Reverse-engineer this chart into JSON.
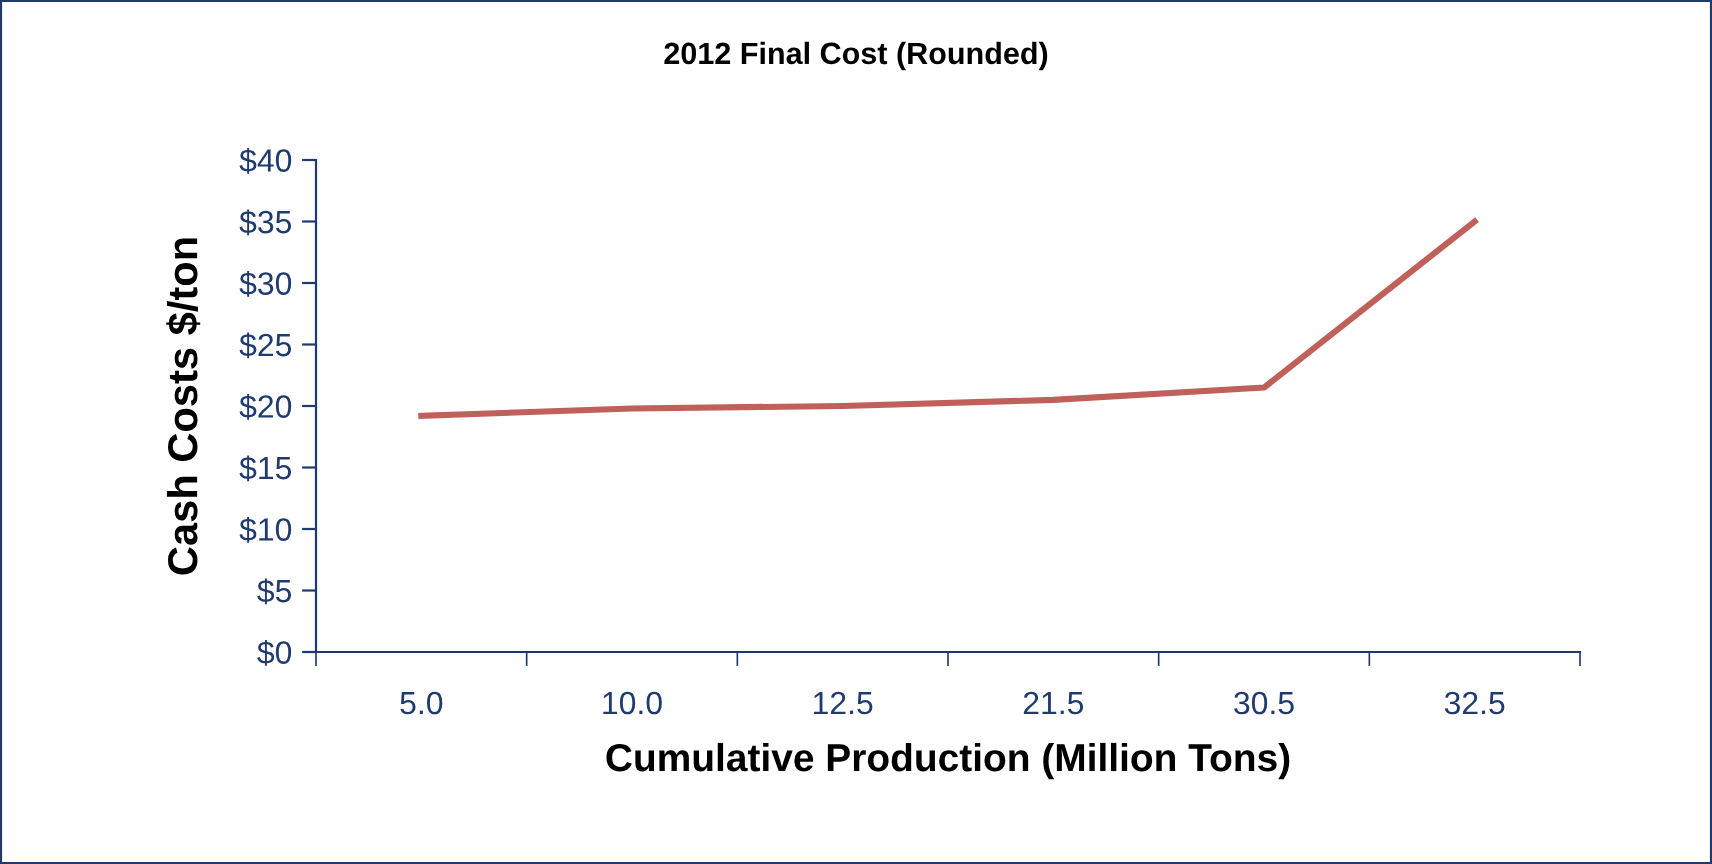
{
  "chart_data": {
    "type": "line",
    "title": "2012 Final Cost (Rounded)",
    "xlabel": "Cumulative Production (Million Tons)",
    "ylabel": "Cash Costs $/ton",
    "categories": [
      "5.0",
      "10.0",
      "12.5",
      "21.5",
      "30.5",
      "32.5"
    ],
    "series": [
      {
        "color": "#c0605a",
        "values": [
          19.2,
          19.8,
          20.0,
          20.5,
          21.5,
          35
        ]
      }
    ],
    "ylim": [
      0,
      40
    ],
    "yticks": [
      {
        "value": 0,
        "label": "$0"
      },
      {
        "value": 5,
        "label": "$5"
      },
      {
        "value": 10,
        "label": "$10"
      },
      {
        "value": 15,
        "label": "$15"
      },
      {
        "value": 20,
        "label": "$20"
      },
      {
        "value": 25,
        "label": "$25"
      },
      {
        "value": 30,
        "label": "$30"
      },
      {
        "value": 35,
        "label": "$35"
      },
      {
        "value": 40,
        "label": "$40"
      }
    ],
    "marker": "none",
    "line_style": "solid"
  }
}
